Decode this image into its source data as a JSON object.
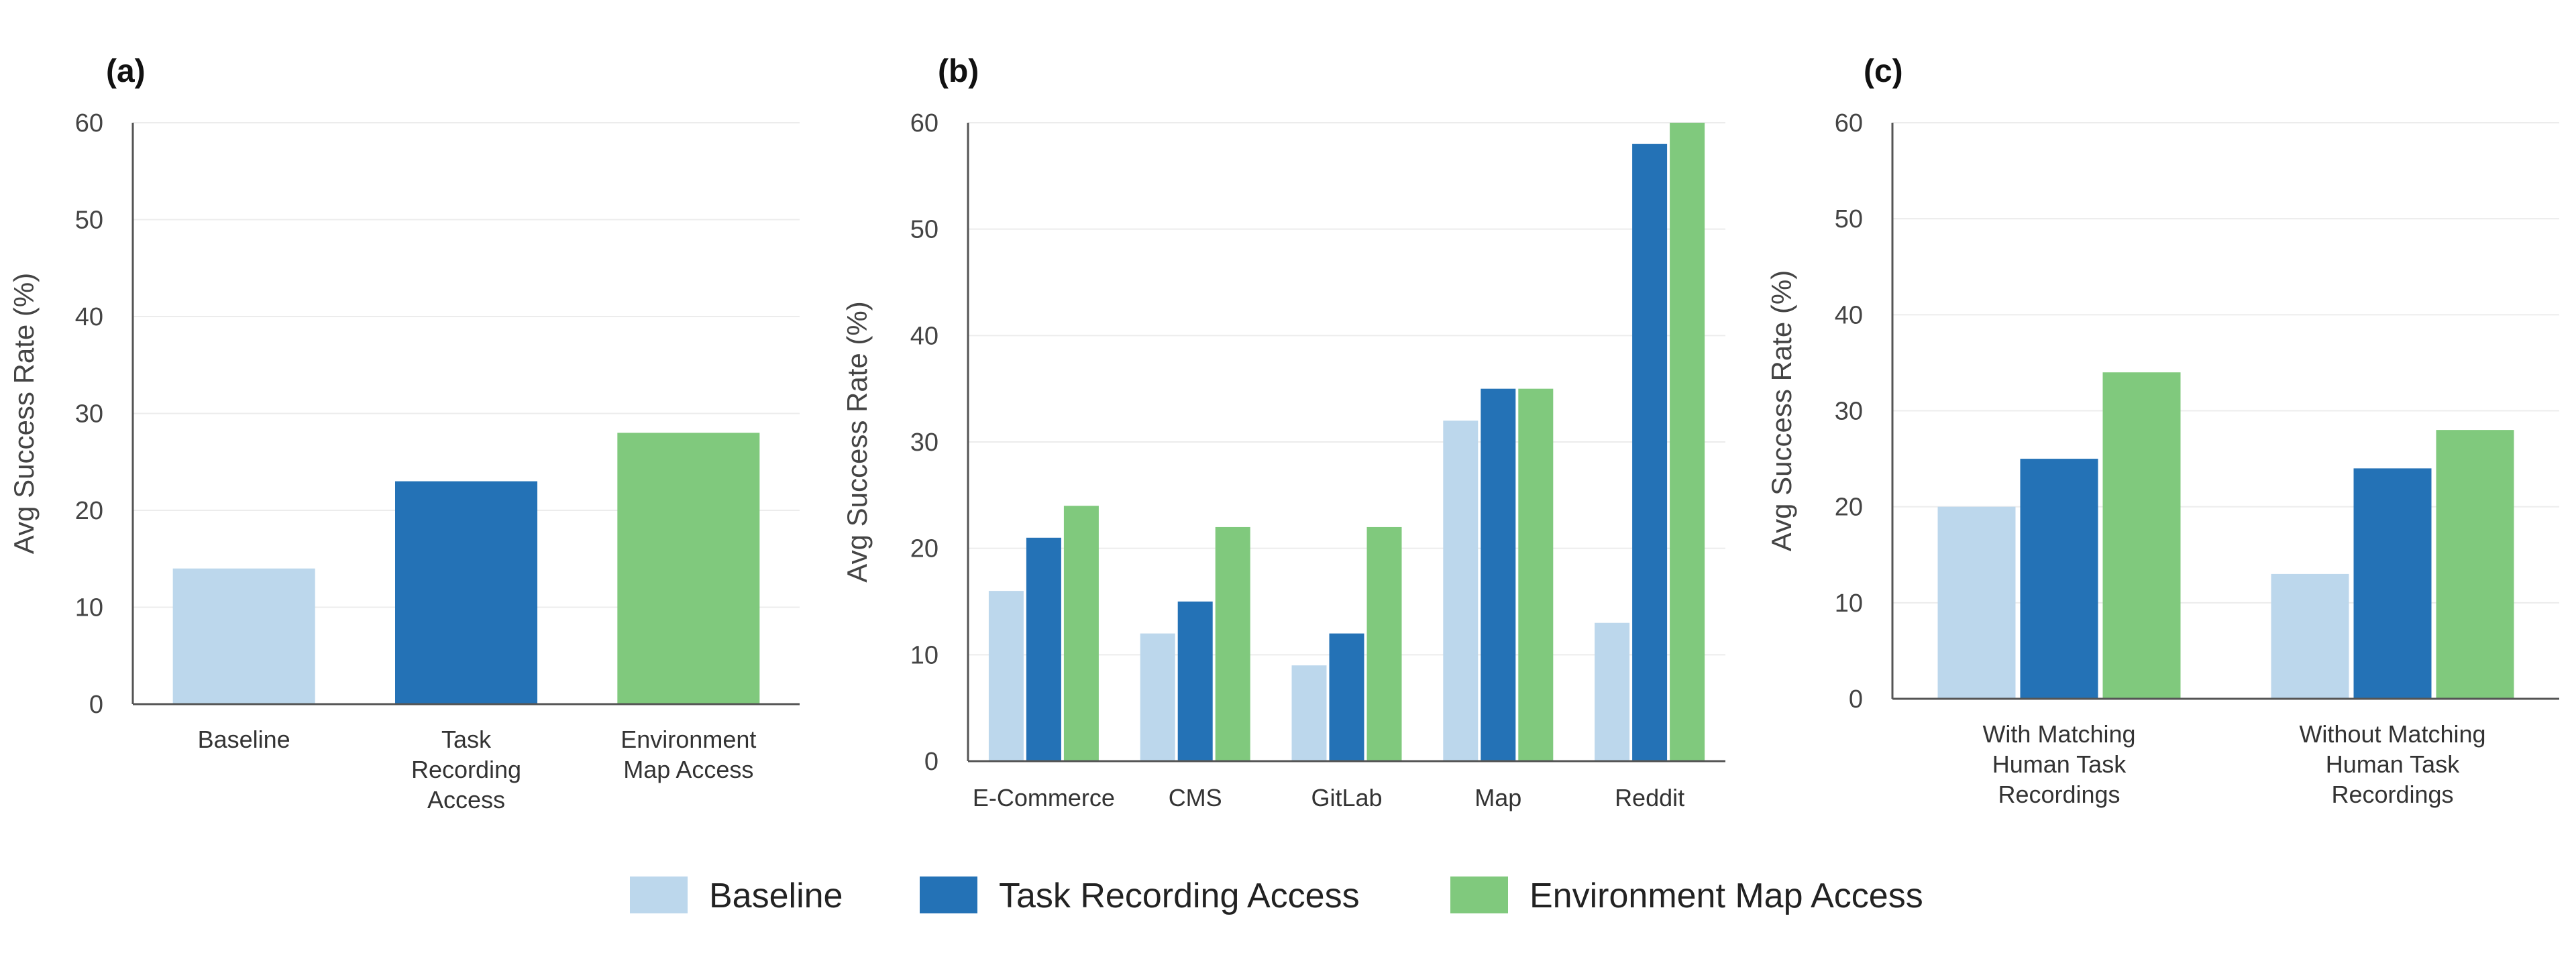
{
  "colors": {
    "baseline": "#bcd7ec",
    "task_recording": "#2472b6",
    "environment_map": "#80c97d"
  },
  "legend": {
    "items": [
      {
        "label": "Baseline",
        "color_key": "baseline"
      },
      {
        "label": "Task Recording Access",
        "color_key": "task_recording"
      },
      {
        "label": "Environment Map Access",
        "color_key": "environment_map"
      }
    ]
  },
  "chart_data": [
    {
      "panel": "(a)",
      "type": "bar",
      "ylabel": "Avg Success Rate (%)",
      "ylim": [
        0,
        60
      ],
      "yticks": [
        0,
        10,
        20,
        30,
        40,
        50,
        60
      ],
      "grid": true,
      "categories": [
        [
          "Baseline"
        ],
        [
          "Task",
          "Recording",
          "Access"
        ],
        [
          "Environment",
          "Map Access"
        ]
      ],
      "values": [
        14,
        23,
        28
      ],
      "bar_color_keys": [
        "baseline",
        "task_recording",
        "environment_map"
      ]
    },
    {
      "panel": "(b)",
      "type": "bar",
      "ylabel": "Avg Success Rate (%)",
      "ylim": [
        0,
        60
      ],
      "yticks": [
        0,
        10,
        20,
        30,
        40,
        50,
        60
      ],
      "grid": true,
      "categories": [
        [
          "E-Commerce"
        ],
        [
          "CMS"
        ],
        [
          "GitLab"
        ],
        [
          "Map"
        ],
        [
          "Reddit"
        ]
      ],
      "series": [
        {
          "name": "Baseline",
          "color_key": "baseline",
          "values": [
            16,
            12,
            9,
            32,
            13
          ]
        },
        {
          "name": "Task Recording Access",
          "color_key": "task_recording",
          "values": [
            21,
            15,
            12,
            35,
            58
          ]
        },
        {
          "name": "Environment Map Access",
          "color_key": "environment_map",
          "values": [
            24,
            22,
            22,
            35,
            60
          ]
        }
      ]
    },
    {
      "panel": "(c)",
      "type": "bar",
      "ylabel": "Avg Success Rate (%)",
      "ylim": [
        0,
        60
      ],
      "yticks": [
        0,
        10,
        20,
        30,
        40,
        50,
        60
      ],
      "grid": true,
      "categories": [
        [
          "With Matching",
          "Human Task",
          "Recordings"
        ],
        [
          "Without Matching",
          "Human Task",
          "Recordings"
        ]
      ],
      "series": [
        {
          "name": "Baseline",
          "color_key": "baseline",
          "values": [
            20,
            13
          ]
        },
        {
          "name": "Task Recording Access",
          "color_key": "task_recording",
          "values": [
            25,
            24
          ]
        },
        {
          "name": "Environment Map Access",
          "color_key": "environment_map",
          "values": [
            34,
            28
          ]
        }
      ]
    }
  ]
}
